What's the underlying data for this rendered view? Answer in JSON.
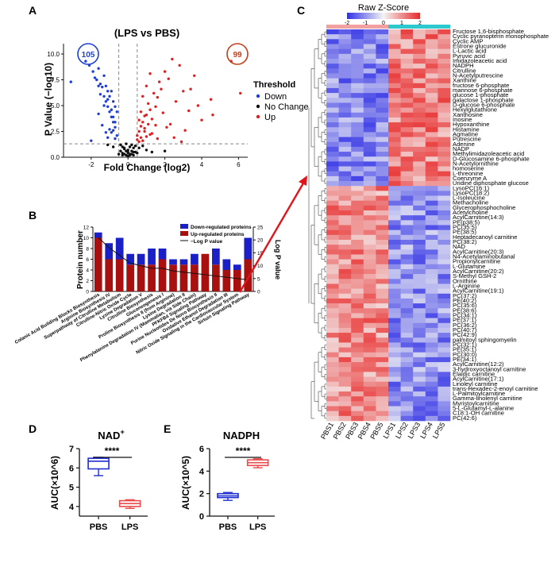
{
  "panels": {
    "A": {
      "letter": "A",
      "title": "(LPS vs PBS)",
      "xlabel": "Fold Change (log2)",
      "ylabel": "P Value (−log10)",
      "down_count": "105",
      "up_count": "99",
      "legend_title": "Threshold",
      "legend": [
        "Down",
        "No Change",
        "Up"
      ],
      "colors": {
        "down": "#1f3fd4",
        "nochange": "#111111",
        "up": "#e02020"
      },
      "xticks": [
        "-2",
        "0",
        "2",
        "4",
        "6"
      ],
      "yticks": [
        "0.0",
        "2.5",
        "5.0",
        "7.5",
        "10.0"
      ]
    },
    "B": {
      "letter": "B",
      "ylabel_left": "Protein number",
      "ylabel_right": "Log P value",
      "legend": [
        "Down-regulated proteins",
        "Up-regulated proteins",
        "−Log P value"
      ],
      "colors": {
        "down": "#1a1fc6",
        "up": "#a8100f",
        "line": "#111111"
      }
    },
    "C": {
      "letter": "C",
      "scale_title": "Raw Z-Score",
      "scale_ticks": [
        "-2",
        "-1",
        "0",
        "1",
        "2"
      ],
      "metabolites": [
        "Fructose 1,6-bisphosphate",
        "Cyclic pyranopterin monophosphate",
        "Cyclic AMP",
        "Estrone glucuronide",
        "L-Lactic acid",
        "Pyruvic acid",
        "Imidazoleacetic acid",
        "NADPH",
        "Citrulline",
        "N-Acetylputrescine",
        "Xanthine",
        "fructose 6-phosphate",
        "mannose 6-phosphate",
        "glucose 1-phosphate",
        "galactose 1-phosphate",
        "D-glucose 6-phosphate",
        "Hexylglutathione",
        "Xanthosine",
        "Inosine",
        "Hypoxanthine",
        "Histamine",
        "Agmatine",
        "Putrescine",
        "Adenine",
        "NADP",
        "Methylimidazoleacetic acid",
        "D-Glucosamine 6-phosphate",
        "N-Acetylornithine",
        "homoserine",
        "L-threonine",
        "Coenzyme A",
        "Uridine diphosphate glucose",
        "LysoPC(16:1)",
        "LysoPC(18:2)",
        "L-Isoleucine",
        "Methacholine",
        "Glycerophosphocholine",
        "Acetylcholine",
        "AcylCarnitine(14:3)",
        "PE(p38:5)",
        "PC(35:5)",
        "PE(38:5)",
        "Heptadecanoyl carnitine",
        "PC(38:2)",
        "NAD",
        "AcylCarnitine(20:3)",
        "N4-Acetylaminobutanal",
        "Propionylcarnitine",
        "L-Glutamine",
        "AcylCarnitine(20:2)",
        "S-Methyl GSH-2",
        "Ornithine",
        "L-Arginine",
        "AcylCarnitine(19:1)",
        "PC(37:2)",
        "PE(40:2)",
        "PC(35:6)",
        "PE(38:6)",
        "PC(34:1)",
        "PE(37:1)",
        "PC(36:2)",
        "PC(40:7)",
        "PC(42:9)",
        "palmitoyl sphingomyelin",
        "PC(32:1)",
        "PE(35:1)",
        "PC(30:0)",
        "PE(34:1)",
        "AcylCarnitine(12:2)",
        "3-hydroxyoctanoyl carnitine",
        "Elaidic carnitine",
        "AcylCarnitine(17:1)",
        "Linoleyl carnitine",
        "trans-Hexadec-2-enoyl carnitine",
        "L-Palmitoylcarnitine",
        "Gamma-linolenyl carnitine",
        "Myristoylcarnitine",
        "5-L-Glutamyl-L-alanine",
        "C18:1-OH carnitine",
        "PC(42:6)"
      ],
      "samples": [
        "PBS1",
        "PBS2",
        "PBS3",
        "PBS4",
        "PBS5",
        "LPS1",
        "LPS2",
        "LPS3",
        "LPS4",
        "LPS5"
      ],
      "group_colors": {
        "PBS": "#f2a0a0",
        "LPS": "#2ec9cf"
      }
    },
    "D": {
      "letter": "D",
      "title": "NAD",
      "title_sup": "+",
      "ylabel": "AUC(×10^6)",
      "significance": "****",
      "yticks": [
        "4",
        "5",
        "6",
        "7"
      ]
    },
    "E": {
      "letter": "E",
      "title": "NADPH",
      "ylabel": "AUC(×10^5)",
      "significance": "****",
      "yticks": [
        "0",
        "2",
        "4",
        "6"
      ]
    }
  },
  "chart_data": [
    {
      "type": "scatter",
      "panel": "A",
      "title": "(LPS vs PBS)",
      "xlabel": "Fold Change (log2)",
      "ylabel": "P Value (−log10)",
      "xlim": [
        -3.5,
        6.5
      ],
      "ylim": [
        0,
        11
      ],
      "thresholds": {
        "fc": [
          -0.5,
          0.5
        ],
        "p": 1.3
      },
      "series": [
        {
          "name": "Down",
          "color": "#1f3fd4",
          "x": [
            -2.3,
            -2.1,
            -1.9,
            -1.8,
            -1.7,
            -1.6,
            -1.6,
            -1.5,
            -1.4,
            -1.3,
            -1.3,
            -1.2,
            -1.2,
            -1.1,
            -1.1,
            -1.0,
            -1.0,
            -0.9,
            -0.9,
            -0.8,
            -0.8,
            -0.7,
            -0.7,
            -0.6,
            -1.5,
            -1.3,
            -1.1,
            -0.9,
            -0.8,
            -0.7,
            -1.0,
            -1.2,
            -1.4,
            -0.6,
            -0.9,
            -1.1,
            -0.7,
            -1.6,
            -0.8,
            -2.0,
            -3.1
          ],
          "y": [
            9.3,
            8.9,
            8.3,
            7.7,
            7.5,
            8.6,
            6.9,
            7.1,
            6.8,
            7.9,
            5.9,
            6.9,
            5.4,
            6.4,
            4.9,
            5.9,
            4.4,
            6.4,
            3.9,
            5.4,
            3.4,
            4.9,
            2.9,
            4.4,
            6.1,
            5.0,
            5.6,
            4.6,
            3.9,
            3.4,
            2.7,
            2.4,
            3.1,
            2.1,
            2.4,
            1.9,
            1.8,
            4.2,
            2.6,
            1.6,
            7.3
          ]
        },
        {
          "name": "No Change",
          "color": "#111111",
          "x": [
            -0.4,
            -0.3,
            -0.2,
            -0.1,
            0.0,
            0.1,
            0.2,
            0.3,
            0.4,
            -0.3,
            -0.2,
            -0.1,
            0.0,
            0.1,
            0.2,
            0.3,
            -0.2,
            0.0,
            0.2,
            -0.1,
            0.1,
            0.0,
            -0.3,
            0.3,
            -0.4,
            0.4,
            0.5,
            -0.5,
            1.0,
            1.3,
            2.0,
            0.8,
            -0.8,
            -1.1,
            0.6
          ],
          "y": [
            1.2,
            1.0,
            0.8,
            0.6,
            0.4,
            0.3,
            0.6,
            0.9,
            1.1,
            0.4,
            0.3,
            0.2,
            0.1,
            0.2,
            0.3,
            0.5,
            0.9,
            0.7,
            1.2,
            1.3,
            1.0,
            0.5,
            0.2,
            0.2,
            0.6,
            0.5,
            0.4,
            0.3,
            0.7,
            0.5,
            0.6,
            1.1,
            1.0,
            1.2,
            0.9
          ]
        },
        {
          "name": "Up",
          "color": "#e02020",
          "x": [
            0.5,
            0.6,
            0.7,
            0.8,
            0.9,
            1.0,
            1.1,
            1.2,
            1.3,
            1.4,
            1.5,
            1.6,
            1.7,
            1.8,
            2.0,
            2.2,
            2.4,
            2.6,
            2.8,
            3.0,
            3.3,
            3.6,
            4.0,
            4.5,
            0.6,
            0.7,
            0.8,
            0.9,
            1.0,
            1.1,
            1.2,
            0.5,
            0.6,
            0.7,
            0.9,
            1.3,
            1.5,
            1.9,
            2.1,
            2.5,
            3.1,
            3.8,
            4.6,
            5.6,
            6.1,
            0.8,
            1.0,
            1.2,
            1.6,
            2.3,
            2.9,
            3.4
          ],
          "y": [
            2.1,
            2.5,
            3.0,
            3.4,
            2.8,
            4.1,
            5.2,
            4.6,
            3.7,
            6.2,
            4.9,
            5.8,
            7.3,
            6.6,
            8.3,
            7.6,
            9.5,
            5.4,
            8.9,
            6.4,
            4.5,
            7.9,
            3.6,
            5.6,
            3.6,
            4.4,
            5.9,
            4.0,
            6.9,
            3.2,
            8.1,
            1.7,
            1.5,
            1.9,
            2.5,
            2.3,
            3.1,
            4.3,
            2.9,
            1.9,
            2.6,
            5.0,
            4.1,
            9.3,
            6.2,
            1.6,
            2.0,
            2.2,
            1.8,
            3.2,
            1.5,
            6.6
          ]
        }
      ]
    },
    {
      "type": "bar",
      "panel": "B",
      "categories": [
        "Colanic Acid Building Blocks Biosynthesis",
        "Arginine Biosynthesis IV",
        "Superpathway of Citrulline Metabolism",
        "Citrulline-Nitric Oxide Cycle",
        "Lysine Degradation V",
        "Citrulline Biosynthesis",
        "Gluconeogenesis I",
        "Proline Biosynthesis II (from Arginine)",
        "Lysine Degradation II",
        "Phenylalanine Degradation IV (Mammalian, via Side Chain)",
        "PFKFB4 Signaling Pathway",
        "Purine Nucleotides De Novo Biosynthesis II",
        "Oxidative Ethanol Degradation III",
        "Nitric Oxide Signaling in the Cardiovascular System",
        "Sirtuin Signaling Pathway"
      ],
      "series": [
        {
          "name": "Up-regulated proteins",
          "values": [
            10,
            6,
            6,
            5,
            5,
            5,
            6,
            5,
            5,
            5,
            7,
            5,
            4,
            4,
            6
          ]
        },
        {
          "name": "Down-regulated proteins",
          "values": [
            1,
            3,
            4,
            2,
            2,
            3,
            2,
            1,
            1,
            2,
            0,
            3,
            2,
            1,
            4
          ]
        }
      ],
      "line": {
        "name": "−Log P value",
        "values": [
          21,
          17,
          14,
          11,
          10,
          9,
          9,
          8,
          7.5,
          7,
          6.5,
          6,
          5.5,
          5,
          4.5
        ]
      },
      "ylim_left": [
        0,
        12
      ],
      "yticks_left": [
        0,
        2,
        4,
        6,
        8,
        10,
        12
      ],
      "ylim_right": [
        0,
        25
      ],
      "yticks_right": [
        0,
        5,
        10,
        15,
        20,
        25
      ]
    },
    {
      "type": "heatmap",
      "panel": "C",
      "rows_up_in_LPS": 32,
      "rows_down_in_LPS": 48,
      "zlim": [
        -2,
        2
      ]
    },
    {
      "type": "box",
      "panel": "D",
      "title": "NAD+",
      "categories": [
        "PBS",
        "LPS"
      ],
      "ylim": [
        3.5,
        7
      ],
      "boxes": [
        {
          "name": "PBS",
          "min": 5.6,
          "q1": 5.95,
          "median": 6.35,
          "q3": 6.5,
          "max": 6.55,
          "color": "#1f2fd0"
        },
        {
          "name": "LPS",
          "min": 3.9,
          "q1": 4.0,
          "median": 4.15,
          "q3": 4.3,
          "max": 4.35,
          "color": "#e84c4c"
        }
      ]
    },
    {
      "type": "box",
      "panel": "E",
      "title": "NADPH",
      "categories": [
        "PBS",
        "LPS"
      ],
      "ylim": [
        0,
        6
      ],
      "boxes": [
        {
          "name": "PBS",
          "min": 1.4,
          "q1": 1.65,
          "median": 1.8,
          "q3": 2.0,
          "max": 2.1,
          "color": "#1f2fd0"
        },
        {
          "name": "LPS",
          "min": 4.3,
          "q1": 4.5,
          "median": 4.75,
          "q3": 5.0,
          "max": 5.1,
          "color": "#e84c4c"
        }
      ]
    }
  ]
}
